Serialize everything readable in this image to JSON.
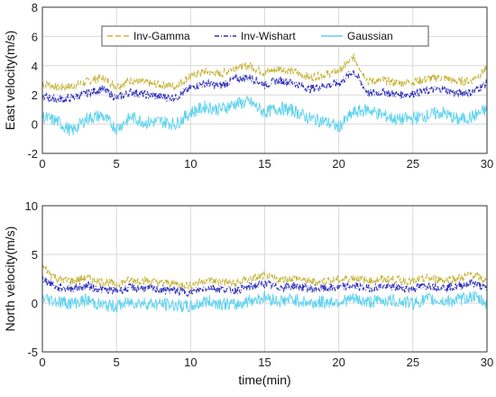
{
  "chart_data": [
    {
      "type": "line",
      "ylabel": "East velocity(m/s)",
      "xlabel": "",
      "xlim": [
        0,
        30
      ],
      "ylim": [
        -2,
        8
      ],
      "xticks": [
        "0",
        "5",
        "10",
        "15",
        "20",
        "25",
        "30"
      ],
      "yticks": [
        "-2",
        "0",
        "2",
        "4",
        "6",
        "8"
      ],
      "grid": true,
      "legend": {
        "placement": "top",
        "entries": [
          "Inv-Gamma",
          "Inv-Wishart",
          "Gaussian"
        ]
      },
      "series": [
        {
          "name": "Inv-Gamma",
          "color": "#c8b43c",
          "style": "dashed",
          "x": [
            0,
            1,
            2,
            3,
            4,
            5,
            6,
            7,
            8,
            9,
            10,
            11,
            12,
            13,
            14,
            15,
            16,
            17,
            18,
            19,
            20,
            21,
            22,
            23,
            24,
            25,
            26,
            27,
            28,
            29,
            30
          ],
          "values": [
            2.8,
            2.5,
            2.6,
            2.9,
            3.2,
            2.6,
            3.0,
            2.8,
            2.7,
            2.6,
            3.3,
            3.6,
            3.4,
            3.9,
            4.0,
            3.5,
            3.8,
            3.6,
            3.2,
            3.4,
            3.6,
            4.6,
            2.9,
            3.0,
            2.8,
            2.9,
            3.1,
            3.2,
            2.9,
            3.0,
            3.8
          ]
        },
        {
          "name": "Inv-Wishart",
          "color": "#2b2bb8",
          "style": "dashdot",
          "x": [
            0,
            1,
            2,
            3,
            4,
            5,
            6,
            7,
            8,
            9,
            10,
            11,
            12,
            13,
            14,
            15,
            16,
            17,
            18,
            19,
            20,
            21,
            22,
            23,
            24,
            25,
            26,
            27,
            28,
            29,
            30
          ],
          "values": [
            1.9,
            1.7,
            1.8,
            2.1,
            2.4,
            1.8,
            2.2,
            2.0,
            1.9,
            1.8,
            2.5,
            2.8,
            2.6,
            3.1,
            3.2,
            2.7,
            3.0,
            2.8,
            2.4,
            2.6,
            2.8,
            3.6,
            2.1,
            2.2,
            2.0,
            2.1,
            2.3,
            2.4,
            2.1,
            2.2,
            2.8
          ]
        },
        {
          "name": "Gaussian",
          "color": "#5fd2ee",
          "style": "solid",
          "x": [
            0,
            1,
            2,
            3,
            4,
            5,
            6,
            7,
            8,
            9,
            10,
            11,
            12,
            13,
            14,
            15,
            16,
            17,
            18,
            19,
            20,
            21,
            22,
            23,
            24,
            25,
            26,
            27,
            28,
            29,
            30
          ],
          "values": [
            0.5,
            0.2,
            -0.5,
            0.4,
            0.6,
            -0.3,
            0.5,
            0.1,
            0.2,
            0.0,
            0.8,
            1.2,
            1.0,
            1.4,
            1.5,
            0.8,
            1.1,
            0.9,
            0.4,
            0.2,
            -0.2,
            0.8,
            1.0,
            0.6,
            0.3,
            0.4,
            0.6,
            0.8,
            0.3,
            0.5,
            1.0
          ]
        }
      ]
    },
    {
      "type": "line",
      "ylabel": "North velocity(m/s)",
      "xlabel": "time(min)",
      "xlim": [
        0,
        30
      ],
      "ylim": [
        -5,
        10
      ],
      "xticks": [
        "0",
        "5",
        "10",
        "15",
        "20",
        "25",
        "30"
      ],
      "yticks": [
        "-5",
        "0",
        "5",
        "10"
      ],
      "grid": true,
      "series": [
        {
          "name": "Inv-Gamma",
          "color": "#c8b43c",
          "style": "dashed",
          "x": [
            0,
            1,
            2,
            3,
            4,
            5,
            6,
            7,
            8,
            9,
            10,
            11,
            12,
            13,
            14,
            15,
            16,
            17,
            18,
            19,
            20,
            21,
            22,
            23,
            24,
            25,
            26,
            27,
            28,
            29,
            30
          ],
          "values": [
            3.8,
            2.5,
            2.3,
            2.6,
            2.2,
            2.0,
            2.4,
            2.3,
            2.1,
            2.0,
            1.8,
            2.4,
            2.2,
            2.0,
            2.5,
            2.8,
            2.4,
            2.6,
            2.2,
            2.3,
            2.4,
            2.6,
            2.3,
            2.5,
            2.4,
            2.2,
            2.6,
            2.4,
            2.5,
            3.0,
            2.2
          ]
        },
        {
          "name": "Inv-Wishart",
          "color": "#2b2bb8",
          "style": "dashdot",
          "x": [
            0,
            1,
            2,
            3,
            4,
            5,
            6,
            7,
            8,
            9,
            10,
            11,
            12,
            13,
            14,
            15,
            16,
            17,
            18,
            19,
            20,
            21,
            22,
            23,
            24,
            25,
            26,
            27,
            28,
            29,
            30
          ],
          "values": [
            2.6,
            1.6,
            1.5,
            1.8,
            1.4,
            1.3,
            1.6,
            1.5,
            1.4,
            1.3,
            1.1,
            1.6,
            1.5,
            1.3,
            1.7,
            2.0,
            1.6,
            1.8,
            1.5,
            1.5,
            1.6,
            1.8,
            1.5,
            1.7,
            1.6,
            1.5,
            1.8,
            1.6,
            1.7,
            2.1,
            1.5
          ]
        },
        {
          "name": "Gaussian",
          "color": "#5fd2ee",
          "style": "solid",
          "x": [
            0,
            1,
            2,
            3,
            4,
            5,
            6,
            7,
            8,
            9,
            10,
            11,
            12,
            13,
            14,
            15,
            16,
            17,
            18,
            19,
            20,
            21,
            22,
            23,
            24,
            25,
            26,
            27,
            28,
            29,
            30
          ],
          "values": [
            0.5,
            0.2,
            0.0,
            0.3,
            -0.2,
            -0.3,
            0.1,
            0.0,
            -0.1,
            -0.2,
            -0.4,
            0.2,
            0.0,
            -0.2,
            0.3,
            0.6,
            0.2,
            0.4,
            0.0,
            0.1,
            0.2,
            0.4,
            0.1,
            0.3,
            0.2,
            0.0,
            0.4,
            0.2,
            0.3,
            0.7,
            0.0
          ]
        }
      ]
    }
  ]
}
